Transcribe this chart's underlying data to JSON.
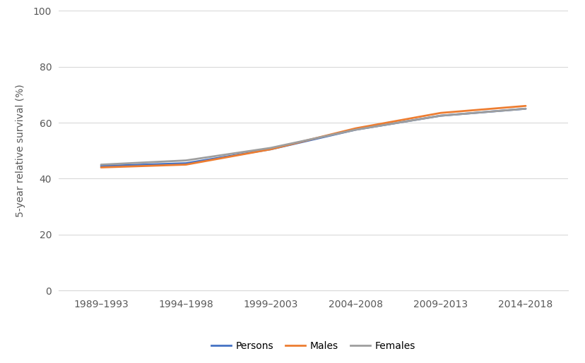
{
  "x_labels": [
    "1989–1993",
    "1994–1998",
    "1999–2003",
    "2004–2008",
    "2009–2013",
    "2014–2018"
  ],
  "persons": [
    44.5,
    45.5,
    50.5,
    57.5,
    62.5,
    65.0
  ],
  "males": [
    44.0,
    45.0,
    50.5,
    58.0,
    63.5,
    66.0
  ],
  "females": [
    45.0,
    46.5,
    51.0,
    57.5,
    62.5,
    65.0
  ],
  "persons_color": "#4472c4",
  "males_color": "#ed7d31",
  "females_color": "#9e9e9e",
  "ylim": [
    0,
    100
  ],
  "yticks": [
    0,
    20,
    40,
    60,
    80,
    100
  ],
  "ylabel": "5-year relative survival (%)",
  "legend_labels": [
    "Persons",
    "Males",
    "Females"
  ],
  "line_width": 2.0,
  "background_color": "#ffffff",
  "grid_color": "#d9d9d9"
}
